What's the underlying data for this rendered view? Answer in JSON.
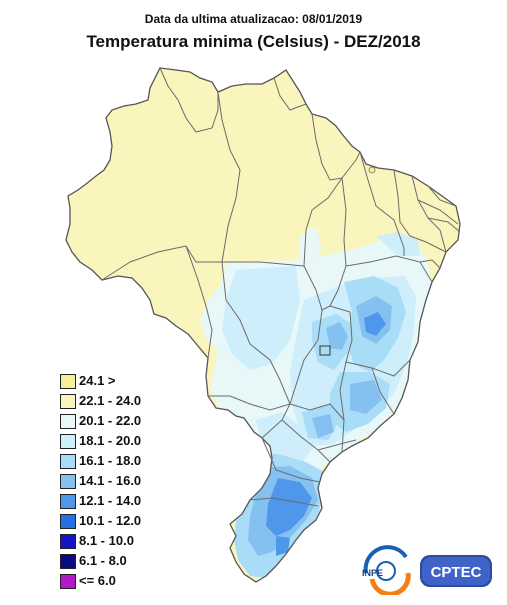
{
  "header": {
    "subtitle": "Data da ultima atualizacao: 08/01/2019",
    "title": "Temperatura minima (Celsius) - DEZ/2018"
  },
  "map": {
    "base_color": "#f9f5bd",
    "border_color": "#6b6b6b"
  },
  "legend": {
    "items": [
      {
        "label": "24.1 >",
        "color": "#f6ef9a"
      },
      {
        "label": "22.1 - 24.0",
        "color": "#f9f5bd"
      },
      {
        "label": "20.1 - 22.0",
        "color": "#e8f7f8"
      },
      {
        "label": "18.1 - 20.0",
        "color": "#cdeefa"
      },
      {
        "label": "16.1 - 18.0",
        "color": "#a9dcf7"
      },
      {
        "label": "14.1 - 16.0",
        "color": "#84c1f1"
      },
      {
        "label": "12.1 - 14.0",
        "color": "#4f97ea"
      },
      {
        "label": "10.1 - 12.0",
        "color": "#2a6ee3"
      },
      {
        "label": "8.1 - 10.0",
        "color": "#1414c8"
      },
      {
        "label": "6.1 - 8.0",
        "color": "#0a0a85"
      },
      {
        "label": "<= 6.0",
        "color": "#b21ac8"
      }
    ]
  },
  "logos": {
    "inpe": "INPE",
    "cptec": "CPTEC"
  }
}
